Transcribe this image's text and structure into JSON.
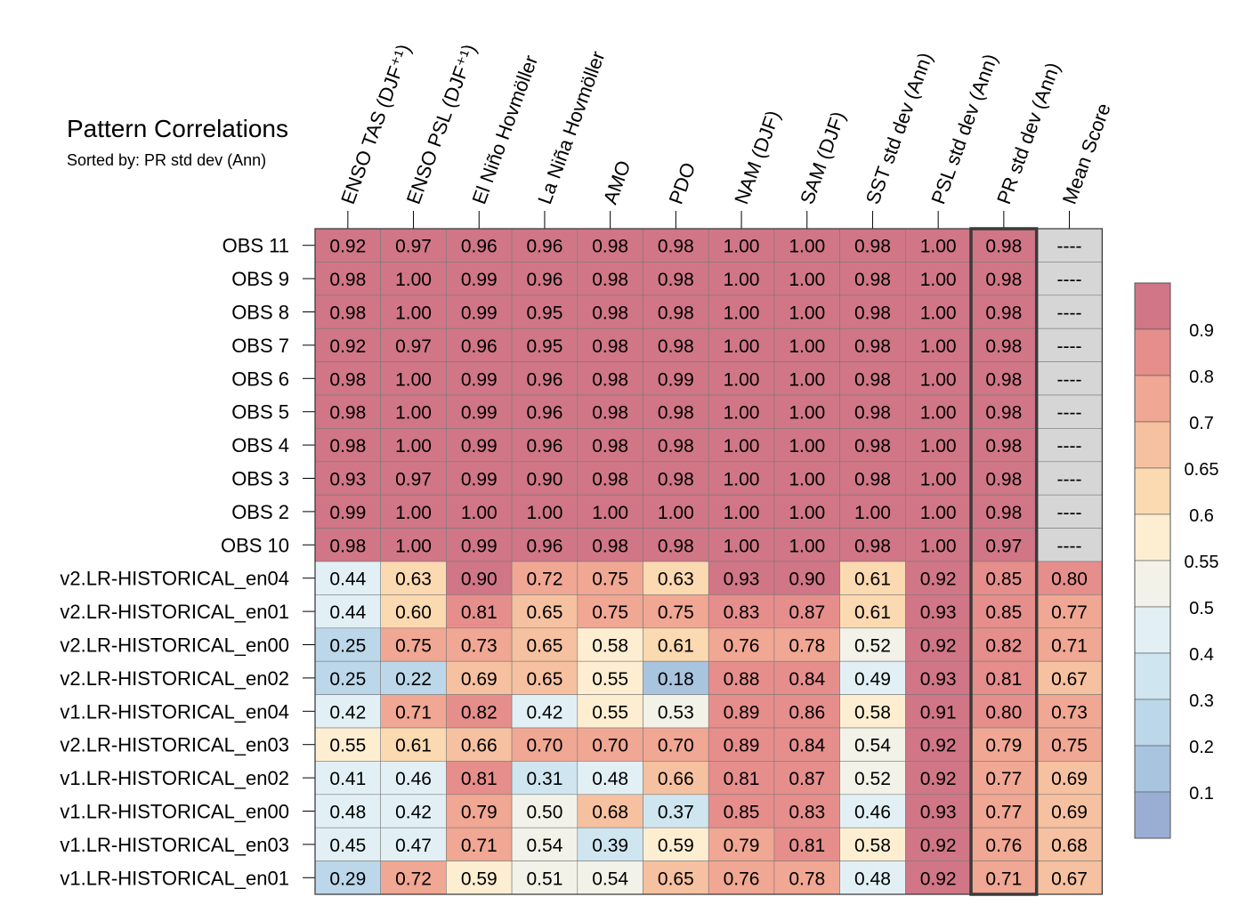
{
  "chart_data": {
    "type": "heatmap",
    "title": "Pattern Correlations",
    "subtitle": "Sorted by: PR std dev (Ann)",
    "columns": [
      "ENSO TAS (DJF⁺¹)",
      "ENSO PSL (DJF⁺¹)",
      "El Niño Hovmöller",
      "La Niña Hovmöller",
      "AMO",
      "PDO",
      "NAM (DJF)",
      "SAM (DJF)",
      "SST std dev (Ann)",
      "PSL std dev (Ann)",
      "PR std dev (Ann)",
      "Mean Score"
    ],
    "rows": [
      "OBS 11",
      "OBS 9",
      "OBS 8",
      "OBS 7",
      "OBS 6",
      "OBS 5",
      "OBS 4",
      "OBS 3",
      "OBS 2",
      "OBS 10",
      "v2.LR-HISTORICAL_en04",
      "v2.LR-HISTORICAL_en01",
      "v2.LR-HISTORICAL_en00",
      "v2.LR-HISTORICAL_en02",
      "v1.LR-HISTORICAL_en04",
      "v2.LR-HISTORICAL_en03",
      "v1.LR-HISTORICAL_en02",
      "v1.LR-HISTORICAL_en00",
      "v1.LR-HISTORICAL_en03",
      "v1.LR-HISTORICAL_en01"
    ],
    "values": [
      [
        "0.92",
        "0.97",
        "0.96",
        "0.96",
        "0.98",
        "0.98",
        "1.00",
        "1.00",
        "0.98",
        "1.00",
        "0.98",
        "----"
      ],
      [
        "0.98",
        "1.00",
        "0.99",
        "0.96",
        "0.98",
        "0.98",
        "1.00",
        "1.00",
        "0.98",
        "1.00",
        "0.98",
        "----"
      ],
      [
        "0.98",
        "1.00",
        "0.99",
        "0.95",
        "0.98",
        "0.98",
        "1.00",
        "1.00",
        "0.98",
        "1.00",
        "0.98",
        "----"
      ],
      [
        "0.92",
        "0.97",
        "0.96",
        "0.95",
        "0.98",
        "0.98",
        "1.00",
        "1.00",
        "0.98",
        "1.00",
        "0.98",
        "----"
      ],
      [
        "0.98",
        "1.00",
        "0.99",
        "0.96",
        "0.98",
        "0.99",
        "1.00",
        "1.00",
        "0.98",
        "1.00",
        "0.98",
        "----"
      ],
      [
        "0.98",
        "1.00",
        "0.99",
        "0.96",
        "0.98",
        "0.98",
        "1.00",
        "1.00",
        "0.98",
        "1.00",
        "0.98",
        "----"
      ],
      [
        "0.98",
        "1.00",
        "0.99",
        "0.96",
        "0.98",
        "0.98",
        "1.00",
        "1.00",
        "0.98",
        "1.00",
        "0.98",
        "----"
      ],
      [
        "0.93",
        "0.97",
        "0.99",
        "0.90",
        "0.98",
        "0.98",
        "1.00",
        "1.00",
        "0.98",
        "1.00",
        "0.98",
        "----"
      ],
      [
        "0.99",
        "1.00",
        "1.00",
        "1.00",
        "1.00",
        "1.00",
        "1.00",
        "1.00",
        "1.00",
        "1.00",
        "0.98",
        "----"
      ],
      [
        "0.98",
        "1.00",
        "0.99",
        "0.96",
        "0.98",
        "0.98",
        "1.00",
        "1.00",
        "0.98",
        "1.00",
        "0.97",
        "----"
      ],
      [
        "0.44",
        "0.63",
        "0.90",
        "0.72",
        "0.75",
        "0.63",
        "0.93",
        "0.90",
        "0.61",
        "0.92",
        "0.85",
        "0.80"
      ],
      [
        "0.44",
        "0.60",
        "0.81",
        "0.65",
        "0.75",
        "0.75",
        "0.83",
        "0.87",
        "0.61",
        "0.93",
        "0.85",
        "0.77"
      ],
      [
        "0.25",
        "0.75",
        "0.73",
        "0.65",
        "0.58",
        "0.61",
        "0.76",
        "0.78",
        "0.52",
        "0.92",
        "0.82",
        "0.71"
      ],
      [
        "0.25",
        "0.22",
        "0.69",
        "0.65",
        "0.55",
        "0.18",
        "0.88",
        "0.84",
        "0.49",
        "0.93",
        "0.81",
        "0.67"
      ],
      [
        "0.42",
        "0.71",
        "0.82",
        "0.42",
        "0.55",
        "0.53",
        "0.89",
        "0.86",
        "0.58",
        "0.91",
        "0.80",
        "0.73"
      ],
      [
        "0.55",
        "0.61",
        "0.66",
        "0.70",
        "0.70",
        "0.70",
        "0.89",
        "0.84",
        "0.54",
        "0.92",
        "0.79",
        "0.75"
      ],
      [
        "0.41",
        "0.46",
        "0.81",
        "0.31",
        "0.48",
        "0.66",
        "0.81",
        "0.87",
        "0.52",
        "0.92",
        "0.77",
        "0.69"
      ],
      [
        "0.48",
        "0.42",
        "0.79",
        "0.50",
        "0.68",
        "0.37",
        "0.85",
        "0.83",
        "0.46",
        "0.93",
        "0.77",
        "0.69"
      ],
      [
        "0.45",
        "0.47",
        "0.71",
        "0.54",
        "0.39",
        "0.59",
        "0.79",
        "0.81",
        "0.58",
        "0.92",
        "0.76",
        "0.68"
      ],
      [
        "0.29",
        "0.72",
        "0.59",
        "0.51",
        "0.54",
        "0.65",
        "0.76",
        "0.78",
        "0.48",
        "0.92",
        "0.71",
        "0.67"
      ]
    ],
    "missing_value": "----",
    "highlighted_column": "PR std dev (Ann)",
    "colorbar": {
      "labels": [
        "0.9",
        "0.8",
        "0.7",
        "0.65",
        "0.6",
        "0.55",
        "0.5",
        "0.4",
        "0.3",
        "0.2",
        "0.1"
      ],
      "levels": [
        0.1,
        0.2,
        0.3,
        0.4,
        0.5,
        0.55,
        0.6,
        0.65,
        0.7,
        0.8,
        0.9
      ],
      "colors": [
        "#9aaed3",
        "#a9c4de",
        "#bcd7e9",
        "#cfe5ef",
        "#e2f0f5",
        "#f2f2e8",
        "#fdeed2",
        "#fbd9b1",
        "#f6c1a0",
        "#f0a793",
        "#e58e8c",
        "#d07686"
      ],
      "missing_color": "#d6d6d6"
    }
  }
}
